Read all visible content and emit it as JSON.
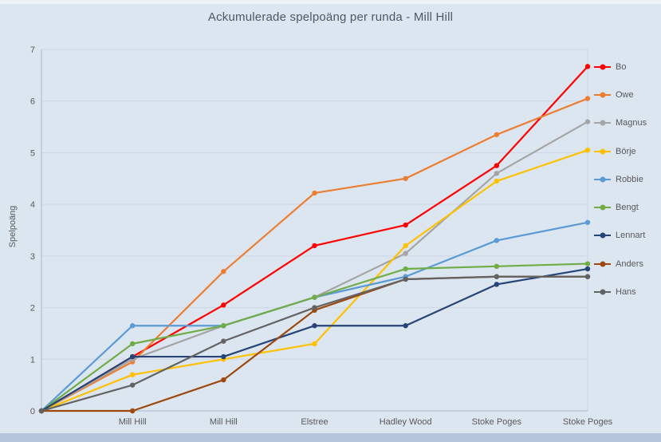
{
  "page": {
    "background": "#dce6f1",
    "bottom_bar_color": "#b5c7dd"
  },
  "colors": {
    "text": "#595959",
    "title_text": "#4d5866",
    "gridline": "#cdd7e3",
    "axis_line": "#a6b7c9"
  },
  "chart_data": {
    "type": "line",
    "title": "Ackumulerade spelpoäng per runda - Mill Hill",
    "xlabel": "",
    "ylabel": "Spelpoäng",
    "ylim": [
      0,
      7
    ],
    "ytick_labels": [
      "0",
      "1",
      "2",
      "3",
      "4",
      "5",
      "6",
      "7"
    ],
    "grid": true,
    "legend_position": "right",
    "markers": true,
    "x_includes_origin_point": true,
    "categories": [
      "Mill Hill",
      "Mill Hill",
      "Elstree",
      "Hadley Wood",
      "Stoke Poges",
      "Stoke Poges"
    ],
    "series": [
      {
        "name": "Bo",
        "color": "#FF0000",
        "values": [
          0,
          1.05,
          2.05,
          3.2,
          3.6,
          4.75,
          6.67
        ]
      },
      {
        "name": "Owe",
        "color": "#ED7D31",
        "values": [
          0,
          0.95,
          2.7,
          4.22,
          4.5,
          5.35,
          6.05
        ]
      },
      {
        "name": "Magnus",
        "color": "#A5A5A5",
        "values": [
          0,
          1.0,
          1.65,
          2.2,
          3.05,
          4.6,
          5.6
        ]
      },
      {
        "name": "Börje",
        "color": "#FFC000",
        "values": [
          0,
          0.7,
          1.0,
          1.3,
          3.2,
          4.45,
          5.05
        ]
      },
      {
        "name": "Robbie",
        "color": "#5B9BD5",
        "values": [
          0,
          1.65,
          1.65,
          2.2,
          2.6,
          3.3,
          3.65
        ]
      },
      {
        "name": "Bengt",
        "color": "#70AD47",
        "values": [
          0,
          1.3,
          1.65,
          2.2,
          2.75,
          2.8,
          2.85
        ]
      },
      {
        "name": "Lennart",
        "color": "#264478",
        "values": [
          0,
          1.05,
          1.05,
          1.65,
          1.65,
          2.45,
          2.75
        ]
      },
      {
        "name": "Anders",
        "color": "#9E480E",
        "values": [
          0,
          0.0,
          0.6,
          1.95,
          2.55,
          2.6,
          2.6
        ]
      },
      {
        "name": "Hans",
        "color": "#636363",
        "values": [
          0,
          0.5,
          1.35,
          2.0,
          2.55,
          2.6,
          2.6
        ]
      }
    ]
  }
}
